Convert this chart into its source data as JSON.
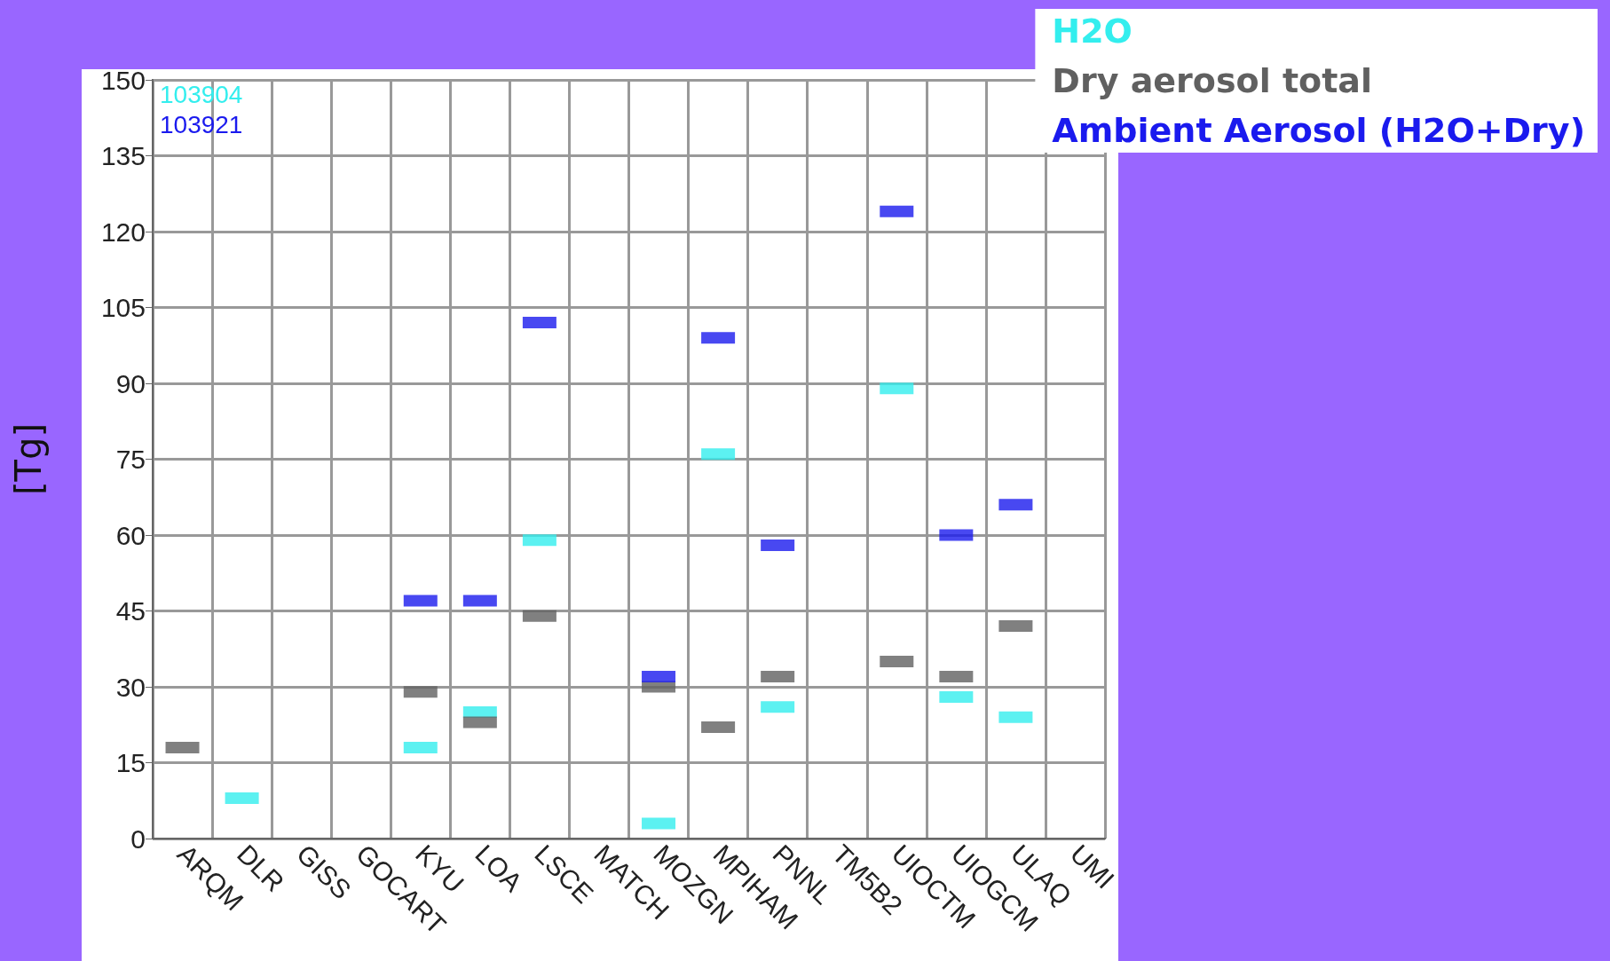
{
  "chart_data": {
    "type": "scatter",
    "ylabel": "[Tg]",
    "categories": [
      "ARQM",
      "DLR",
      "GISS",
      "GOCART",
      "KYU",
      "LOA",
      "LSCE",
      "MATCH",
      "MOZGN",
      "MPIHAM",
      "PNNL",
      "TM5B2",
      "UIOCTM",
      "UIOGCM",
      "ULAQ",
      "UMI"
    ],
    "series": [
      {
        "name": "H2O",
        "color": "#33eeee",
        "values": [
          null,
          8,
          null,
          null,
          18,
          25,
          59,
          null,
          3,
          76,
          26,
          null,
          89,
          28,
          24,
          null
        ]
      },
      {
        "name": "Dry aerosol total",
        "color": "#606060",
        "values": [
          18,
          null,
          null,
          null,
          29,
          23,
          44,
          null,
          30,
          22,
          32,
          null,
          35,
          32,
          42,
          null
        ]
      },
      {
        "name": "Ambient Aerosol (H2O+Dry)",
        "color": "#1a1aee",
        "values": [
          null,
          null,
          null,
          null,
          47,
          47,
          102,
          null,
          32,
          99,
          58,
          null,
          124,
          60,
          66,
          null
        ]
      }
    ],
    "annotations": [
      "103904",
      "103921"
    ],
    "ylim": [
      0,
      150
    ],
    "yticks": [
      0,
      15,
      30,
      45,
      60,
      75,
      90,
      105,
      120,
      135,
      150
    ],
    "grid": true,
    "legend": "top right",
    "marker": "square"
  }
}
